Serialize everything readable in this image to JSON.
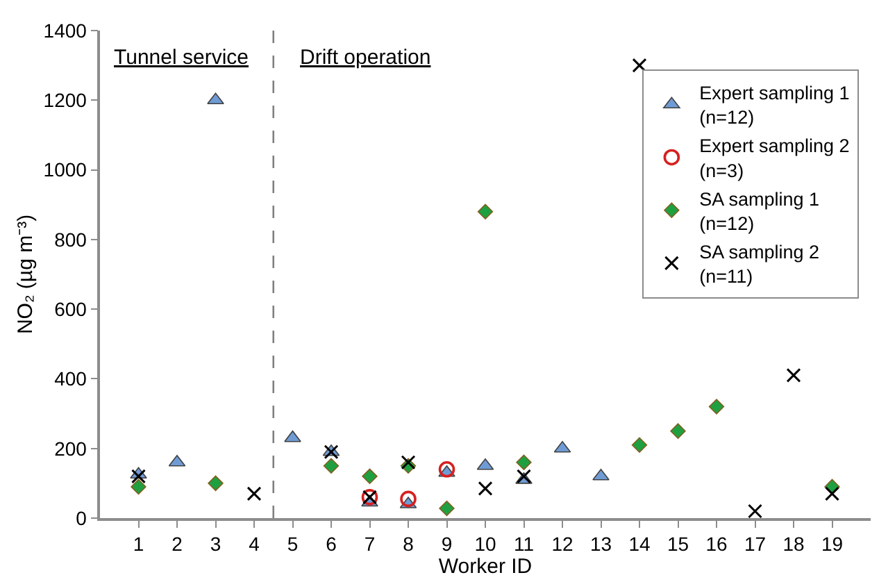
{
  "chart_data": {
    "type": "scatter",
    "xlabel": "Worker ID",
    "ylabel": "NO₂ (µg m⁻³)",
    "xlim": [
      0,
      20
    ],
    "xticks": [
      1,
      2,
      3,
      4,
      5,
      6,
      7,
      8,
      9,
      10,
      11,
      12,
      13,
      14,
      15,
      16,
      17,
      18,
      19
    ],
    "ylim": [
      0,
      1400
    ],
    "yticks": [
      0,
      200,
      400,
      600,
      800,
      1000,
      1200,
      1400
    ],
    "legend": "top right",
    "ref_lines": [
      {
        "axis": "x",
        "value": 4.5,
        "color": "#808080",
        "line_style": "dashed"
      }
    ],
    "annotations": [
      "Tunnel service",
      "Drift operation"
    ],
    "series": [
      {
        "name": "Expert sampling 1\n(n=12)",
        "color": "#6f9bd5",
        "marker": "triangle",
        "x": [
          1,
          2,
          3,
          5,
          6,
          7,
          8,
          9,
          10,
          11,
          12,
          13
        ],
        "values": [
          125,
          160,
          1200,
          230,
          190,
          45,
          40,
          130,
          150,
          110,
          200,
          120
        ]
      },
      {
        "name": "Expert sampling 2\n(n=3)",
        "color": "#d62020",
        "marker": "circle",
        "x": [
          7,
          8,
          9
        ],
        "values": [
          60,
          55,
          140
        ]
      },
      {
        "name": "SA sampling 1\n(n=12)",
        "color": "#1fa040",
        "marker": "diamond",
        "x": [
          1,
          3,
          6,
          7,
          8,
          9,
          10,
          11,
          14,
          15,
          16,
          19
        ],
        "values": [
          90,
          100,
          150,
          120,
          150,
          28,
          880,
          160,
          210,
          250,
          320,
          90
        ]
      },
      {
        "name": "SA sampling 2\n(n=11)",
        "color": "#000000",
        "marker": "cross",
        "x": [
          1,
          4,
          6,
          7,
          8,
          10,
          11,
          14,
          17,
          18,
          19
        ],
        "values": [
          120,
          70,
          190,
          60,
          160,
          85,
          120,
          1300,
          20,
          410,
          70
        ]
      }
    ]
  }
}
